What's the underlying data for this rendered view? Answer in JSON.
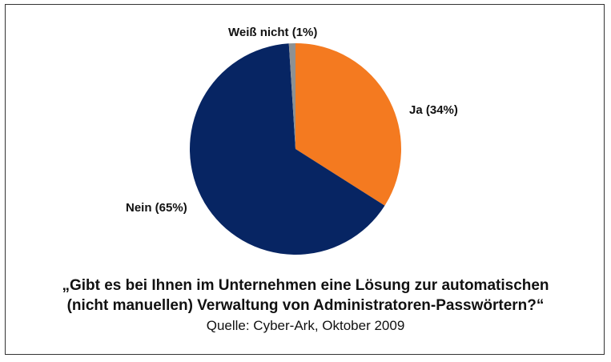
{
  "chart_data": {
    "type": "pie",
    "slices": [
      {
        "label": "Ja (34%)",
        "value": 34,
        "color": "#F47A20"
      },
      {
        "label": "Nein (65%)",
        "value": 65,
        "color": "#072563"
      },
      {
        "label": "Weiß nicht (1%)",
        "value": 1,
        "color": "#8E9193"
      }
    ],
    "start_angle_deg": 0,
    "direction": "clockwise",
    "legend": "none",
    "caption_line1": "„Gibt es bei Ihnen im Unternehmen eine Lösung zur automatischen",
    "caption_line2": "(nicht manuellen) Verwaltung von Administratoren-Passwörtern?“",
    "source": "Quelle: Cyber-Ark, Oktober 2009"
  }
}
